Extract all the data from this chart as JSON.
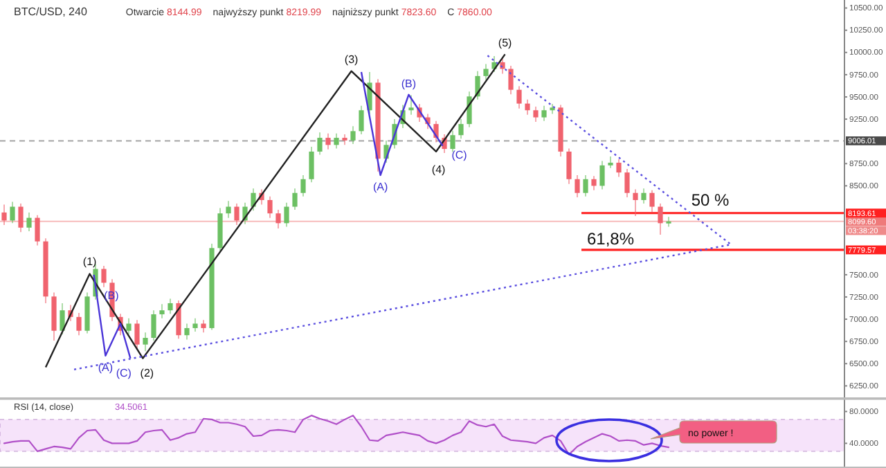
{
  "chart_data": [
    {
      "type": "candlestick",
      "title": "BTC/USD, 240",
      "categories": [
        null,
        null,
        null,
        null,
        null,
        null,
        null,
        null,
        null,
        null,
        null,
        null,
        null,
        null,
        null,
        null,
        null,
        null,
        null,
        null,
        null,
        null,
        null,
        null,
        null,
        null,
        null,
        null,
        null,
        null,
        null,
        null,
        null,
        null,
        null,
        null,
        null,
        null,
        null,
        null,
        null,
        null,
        null,
        null,
        null,
        null,
        null,
        null,
        null,
        null,
        null,
        null,
        null,
        null,
        null,
        null,
        null,
        null,
        null,
        null,
        null,
        null,
        null,
        null,
        null,
        null,
        null,
        null,
        null,
        null,
        null,
        null,
        null,
        null,
        null,
        null,
        null,
        null,
        null,
        null,
        null,
        null,
        null,
        null,
        null,
        null,
        null,
        null,
        null,
        null,
        null,
        null,
        null,
        null,
        null,
        null,
        null,
        null,
        null,
        null,
        null,
        null
      ],
      "ohlc": [
        [
          8200,
          8290,
          8060,
          8110
        ],
        [
          8110,
          8320,
          8080,
          8265
        ],
        [
          8265,
          8300,
          7980,
          8030
        ],
        [
          8030,
          8200,
          7990,
          8140
        ],
        [
          8140,
          8170,
          7830,
          7875
        ],
        [
          7875,
          7910,
          7180,
          7255
        ],
        [
          7255,
          7300,
          6760,
          6870
        ],
        [
          6870,
          7180,
          6830,
          7100
        ],
        [
          7100,
          7160,
          6980,
          7025
        ],
        [
          7025,
          7070,
          6820,
          6870
        ],
        [
          6870,
          7300,
          6840,
          7255
        ],
        [
          7255,
          7620,
          7220,
          7565
        ],
        [
          7565,
          7600,
          7360,
          7410
        ],
        [
          7410,
          7450,
          6980,
          7025
        ],
        [
          7025,
          7060,
          6820,
          6870
        ],
        [
          6870,
          7010,
          6830,
          6950
        ],
        [
          6950,
          6990,
          6660,
          6715
        ],
        [
          6715,
          6850,
          6640,
          6790
        ],
        [
          6790,
          7100,
          6760,
          7055
        ],
        [
          7055,
          7170,
          7010,
          7100
        ],
        [
          7100,
          7230,
          7060,
          7180
        ],
        [
          7180,
          7210,
          6780,
          6820
        ],
        [
          6820,
          6950,
          6770,
          6900
        ],
        [
          6900,
          7010,
          6860,
          6950
        ],
        [
          6950,
          6990,
          6850,
          6900
        ],
        [
          6900,
          7850,
          6880,
          7800
        ],
        [
          7800,
          8250,
          7760,
          8190
        ],
        [
          8190,
          8330,
          8140,
          8265
        ],
        [
          8265,
          8300,
          8060,
          8110
        ],
        [
          8110,
          8310,
          8070,
          8265
        ],
        [
          8265,
          8470,
          8220,
          8420
        ],
        [
          8420,
          8460,
          8290,
          8340
        ],
        [
          8340,
          8380,
          8140,
          8190
        ],
        [
          8190,
          8230,
          8020,
          8080
        ],
        [
          8080,
          8310,
          8040,
          8265
        ],
        [
          8265,
          8470,
          8230,
          8420
        ],
        [
          8420,
          8620,
          8380,
          8575
        ],
        [
          8575,
          8940,
          8540,
          8885
        ],
        [
          8885,
          9100,
          8850,
          9040
        ],
        [
          9040,
          9090,
          8910,
          8960
        ],
        [
          8960,
          9090,
          8920,
          9040
        ],
        [
          9040,
          9080,
          8960,
          9010
        ],
        [
          9010,
          9170,
          8970,
          9115
        ],
        [
          9115,
          9400,
          9080,
          9350
        ],
        [
          9350,
          9780,
          9310,
          9660
        ],
        [
          9660,
          9700,
          8660,
          8805
        ],
        [
          8805,
          9010,
          8760,
          8960
        ],
        [
          8960,
          9250,
          8920,
          9195
        ],
        [
          9195,
          9410,
          9150,
          9350
        ],
        [
          9350,
          9520,
          9300,
          9380
        ],
        [
          9380,
          9420,
          9220,
          9270
        ],
        [
          9270,
          9310,
          9140,
          9195
        ],
        [
          9195,
          9230,
          8990,
          9040
        ],
        [
          9040,
          9080,
          8870,
          8915
        ],
        [
          8915,
          9120,
          8880,
          9070
        ],
        [
          9070,
          9250,
          9030,
          9195
        ],
        [
          9195,
          9560,
          9160,
          9505
        ],
        [
          9505,
          9790,
          9470,
          9735
        ],
        [
          9735,
          9870,
          9690,
          9815
        ],
        [
          9815,
          9960,
          9780,
          9890
        ],
        [
          9890,
          9930,
          9760,
          9815
        ],
        [
          9815,
          9850,
          9530,
          9580
        ],
        [
          9580,
          9620,
          9370,
          9425
        ],
        [
          9425,
          9470,
          9300,
          9350
        ],
        [
          9350,
          9390,
          9220,
          9270
        ],
        [
          9270,
          9400,
          9230,
          9350
        ],
        [
          9350,
          9420,
          9310,
          9380
        ],
        [
          9380,
          9410,
          8830,
          8885
        ],
        [
          8885,
          8920,
          8520,
          8575
        ],
        [
          8575,
          8620,
          8370,
          8420
        ],
        [
          8420,
          8620,
          8380,
          8575
        ],
        [
          8575,
          8610,
          8450,
          8500
        ],
        [
          8500,
          8780,
          8460,
          8730
        ],
        [
          8730,
          8830,
          8700,
          8760
        ],
        [
          8760,
          8800,
          8600,
          8650
        ],
        [
          8650,
          8690,
          8370,
          8420
        ],
        [
          8420,
          8460,
          8160,
          8340
        ],
        [
          8340,
          8470,
          8300,
          8420
        ],
        [
          8420,
          8450,
          8200,
          8265
        ],
        [
          8265,
          8300,
          7950,
          8080
        ],
        [
          8080,
          8150,
          8040,
          8100
        ],
        null,
        null,
        null,
        null,
        null,
        null,
        null,
        null,
        null,
        null,
        null,
        null,
        null,
        null,
        null,
        null,
        null,
        null,
        null,
        null,
        null
      ],
      "annotations": [
        "Otwarcie 8144.99",
        "najwyższy punkt 8219.99",
        "najniższy punkt 7823.60",
        "C 7860.00",
        "(1)",
        "(2)",
        "(3)",
        "(4)",
        "(5)",
        "(A)",
        "(B)",
        "(C)",
        "(A)",
        "(B)",
        "(C)",
        "50 %",
        "61,8%",
        "03:38:20"
      ],
      "ref_lines": [
        {
          "axis": "y",
          "value": 9006.01,
          "label": "9006.01",
          "color": "#4a4a4a",
          "line_style": "dashed"
        },
        {
          "axis": "y",
          "value": 8099.6,
          "label": "8099.60",
          "color": "#ef7a7a"
        },
        {
          "axis": "y",
          "value": 8193.61,
          "label": "8193.61",
          "color": "#ff2020"
        },
        {
          "axis": "y",
          "value": 7779.57,
          "label": "7779.57",
          "color": "#ff2020"
        }
      ],
      "ylim": [
        6105,
        10590
      ],
      "yticks": [
        {
          "value": 6250,
          "label": "6250.00"
        },
        {
          "value": 6500,
          "label": "6500.00"
        },
        {
          "value": 6750,
          "label": "6750.00"
        },
        {
          "value": 7000,
          "label": "7000.00"
        },
        {
          "value": 7250,
          "label": "7250.00"
        },
        {
          "value": 7500,
          "label": "7500.00"
        },
        {
          "value": 8500,
          "label": "8500.00"
        },
        {
          "value": 8750,
          "label": "8750.00"
        },
        {
          "value": 9250,
          "label": "9250.00"
        },
        {
          "value": 9500,
          "label": "9500.00"
        },
        {
          "value": 9750,
          "label": "9750.00"
        },
        {
          "value": 10000,
          "label": "10000.00"
        },
        {
          "value": 10250,
          "label": "10250.00"
        },
        {
          "value": 10500,
          "label": "10500.00"
        }
      ],
      "tick_labels": "y"
    },
    {
      "type": "line",
      "title": "RSI (14, close)",
      "categories": [
        null,
        null,
        null,
        null,
        null,
        null,
        null,
        null,
        null,
        null,
        null,
        null,
        null,
        null,
        null,
        null,
        null,
        null,
        null,
        null,
        null,
        null,
        null,
        null,
        null,
        null,
        null,
        null,
        null,
        null,
        null,
        null,
        null,
        null,
        null,
        null,
        null,
        null,
        null,
        null,
        null,
        null,
        null,
        null,
        null,
        null,
        null,
        null,
        null,
        null,
        null,
        null,
        null,
        null,
        null,
        null,
        null,
        null,
        null,
        null,
        null,
        null,
        null,
        null,
        null,
        null,
        null,
        null,
        null,
        null,
        null,
        null,
        null,
        null,
        null,
        null,
        null,
        null,
        null,
        null,
        null
      ],
      "series": [
        {
          "color": "#b04fc8",
          "values": [
            40,
            42,
            43,
            43,
            30,
            33,
            36,
            35,
            33,
            47,
            56,
            57,
            44,
            40,
            40,
            40,
            43,
            54,
            56,
            57,
            44,
            47,
            52,
            54,
            71,
            70,
            66,
            66,
            64,
            61,
            49,
            50,
            56,
            57,
            56,
            54,
            70,
            75,
            71,
            68,
            64,
            70,
            75,
            61,
            44,
            43,
            50,
            52,
            54,
            52,
            50,
            43,
            40,
            44,
            50,
            54,
            68,
            63,
            61,
            64,
            49,
            44,
            43,
            42,
            40,
            47,
            50,
            43,
            26,
            36,
            42,
            47,
            52,
            49,
            43,
            44,
            43,
            38,
            40,
            37,
            35
          ]
        }
      ],
      "annotations": [
        "34.5061",
        "no power !"
      ],
      "bands": [
        {
          "axis": "y",
          "from": 30,
          "to": 70,
          "color": "#f6e3fa"
        }
      ],
      "ylim": [
        9,
        96
      ],
      "yticks": [
        {
          "value": 80,
          "label": "80.0000"
        },
        {
          "value": 40,
          "label": "40.0000"
        }
      ],
      "tick_labels": "y"
    }
  ]
}
